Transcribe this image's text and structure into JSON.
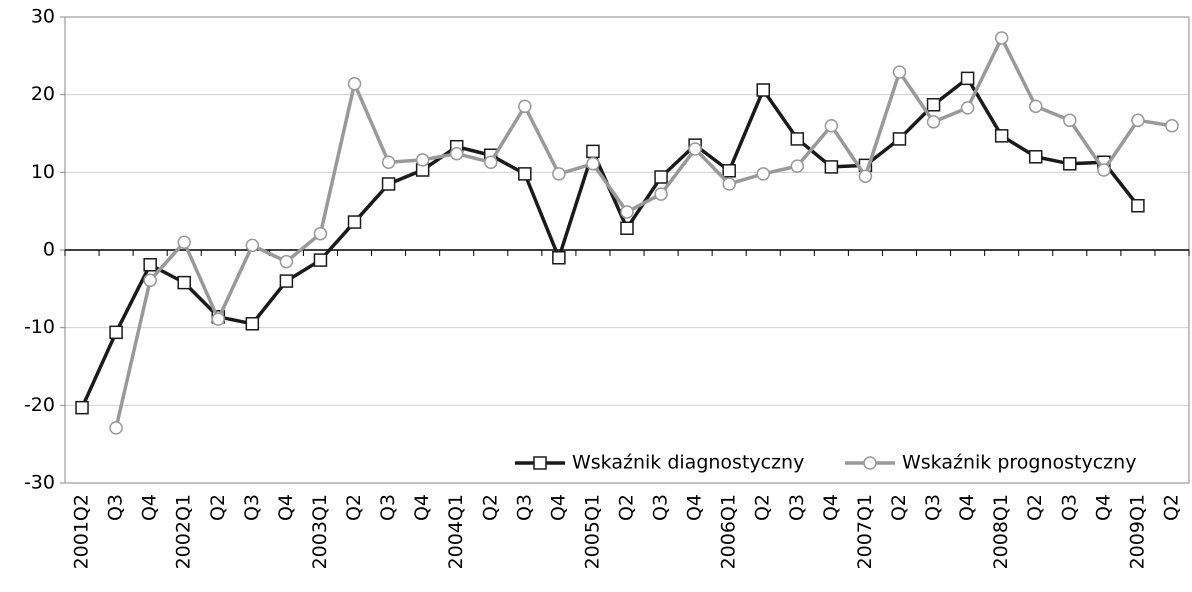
{
  "chart_data": {
    "type": "line",
    "categories": [
      "2001Q2",
      "Q3",
      "Q4",
      "2002Q1",
      "Q2",
      "Q3",
      "Q4",
      "2003Q1",
      "Q2",
      "Q3",
      "Q4",
      "2004Q1",
      "Q2",
      "Q3",
      "Q4",
      "2005Q1",
      "Q2",
      "Q3",
      "Q4",
      "2006Q1",
      "Q2",
      "Q3",
      "Q4",
      "2007Q1",
      "Q2",
      "Q3",
      "Q4",
      "2008Q1",
      "Q2",
      "Q3",
      "Q4",
      "2009Q1",
      "Q2"
    ],
    "series": [
      {
        "name": "Wskaźnik diagnostyczny",
        "color": "#1a1a1a",
        "marker": "square",
        "values": [
          -20.3,
          -10.6,
          -1.9,
          -4.2,
          -8.6,
          -9.5,
          -4.0,
          -1.3,
          3.6,
          8.5,
          10.3,
          13.3,
          12.2,
          9.8,
          -1.0,
          12.7,
          2.8,
          9.4,
          13.5,
          10.2,
          20.6,
          14.3,
          10.7,
          10.9,
          14.3,
          18.7,
          22.1,
          14.7,
          12.0,
          11.1,
          11.3,
          5.7,
          null
        ]
      },
      {
        "name": "Wskaźnik prognostyczny",
        "color": "#999999",
        "marker": "circle",
        "values": [
          null,
          -22.9,
          -3.9,
          1.0,
          -8.9,
          0.6,
          -1.5,
          2.1,
          21.4,
          11.3,
          11.6,
          12.4,
          11.3,
          18.5,
          9.8,
          11.1,
          4.9,
          7.2,
          13.0,
          8.5,
          9.8,
          10.8,
          16.0,
          9.5,
          22.9,
          16.5,
          18.3,
          27.3,
          18.5,
          16.7,
          10.3,
          16.7,
          16.0
        ]
      }
    ],
    "ylim": [
      -30,
      30
    ],
    "yticks": [
      -30,
      -20,
      -10,
      0,
      10,
      20,
      30
    ],
    "grid": true,
    "legend": "bottom-right"
  }
}
